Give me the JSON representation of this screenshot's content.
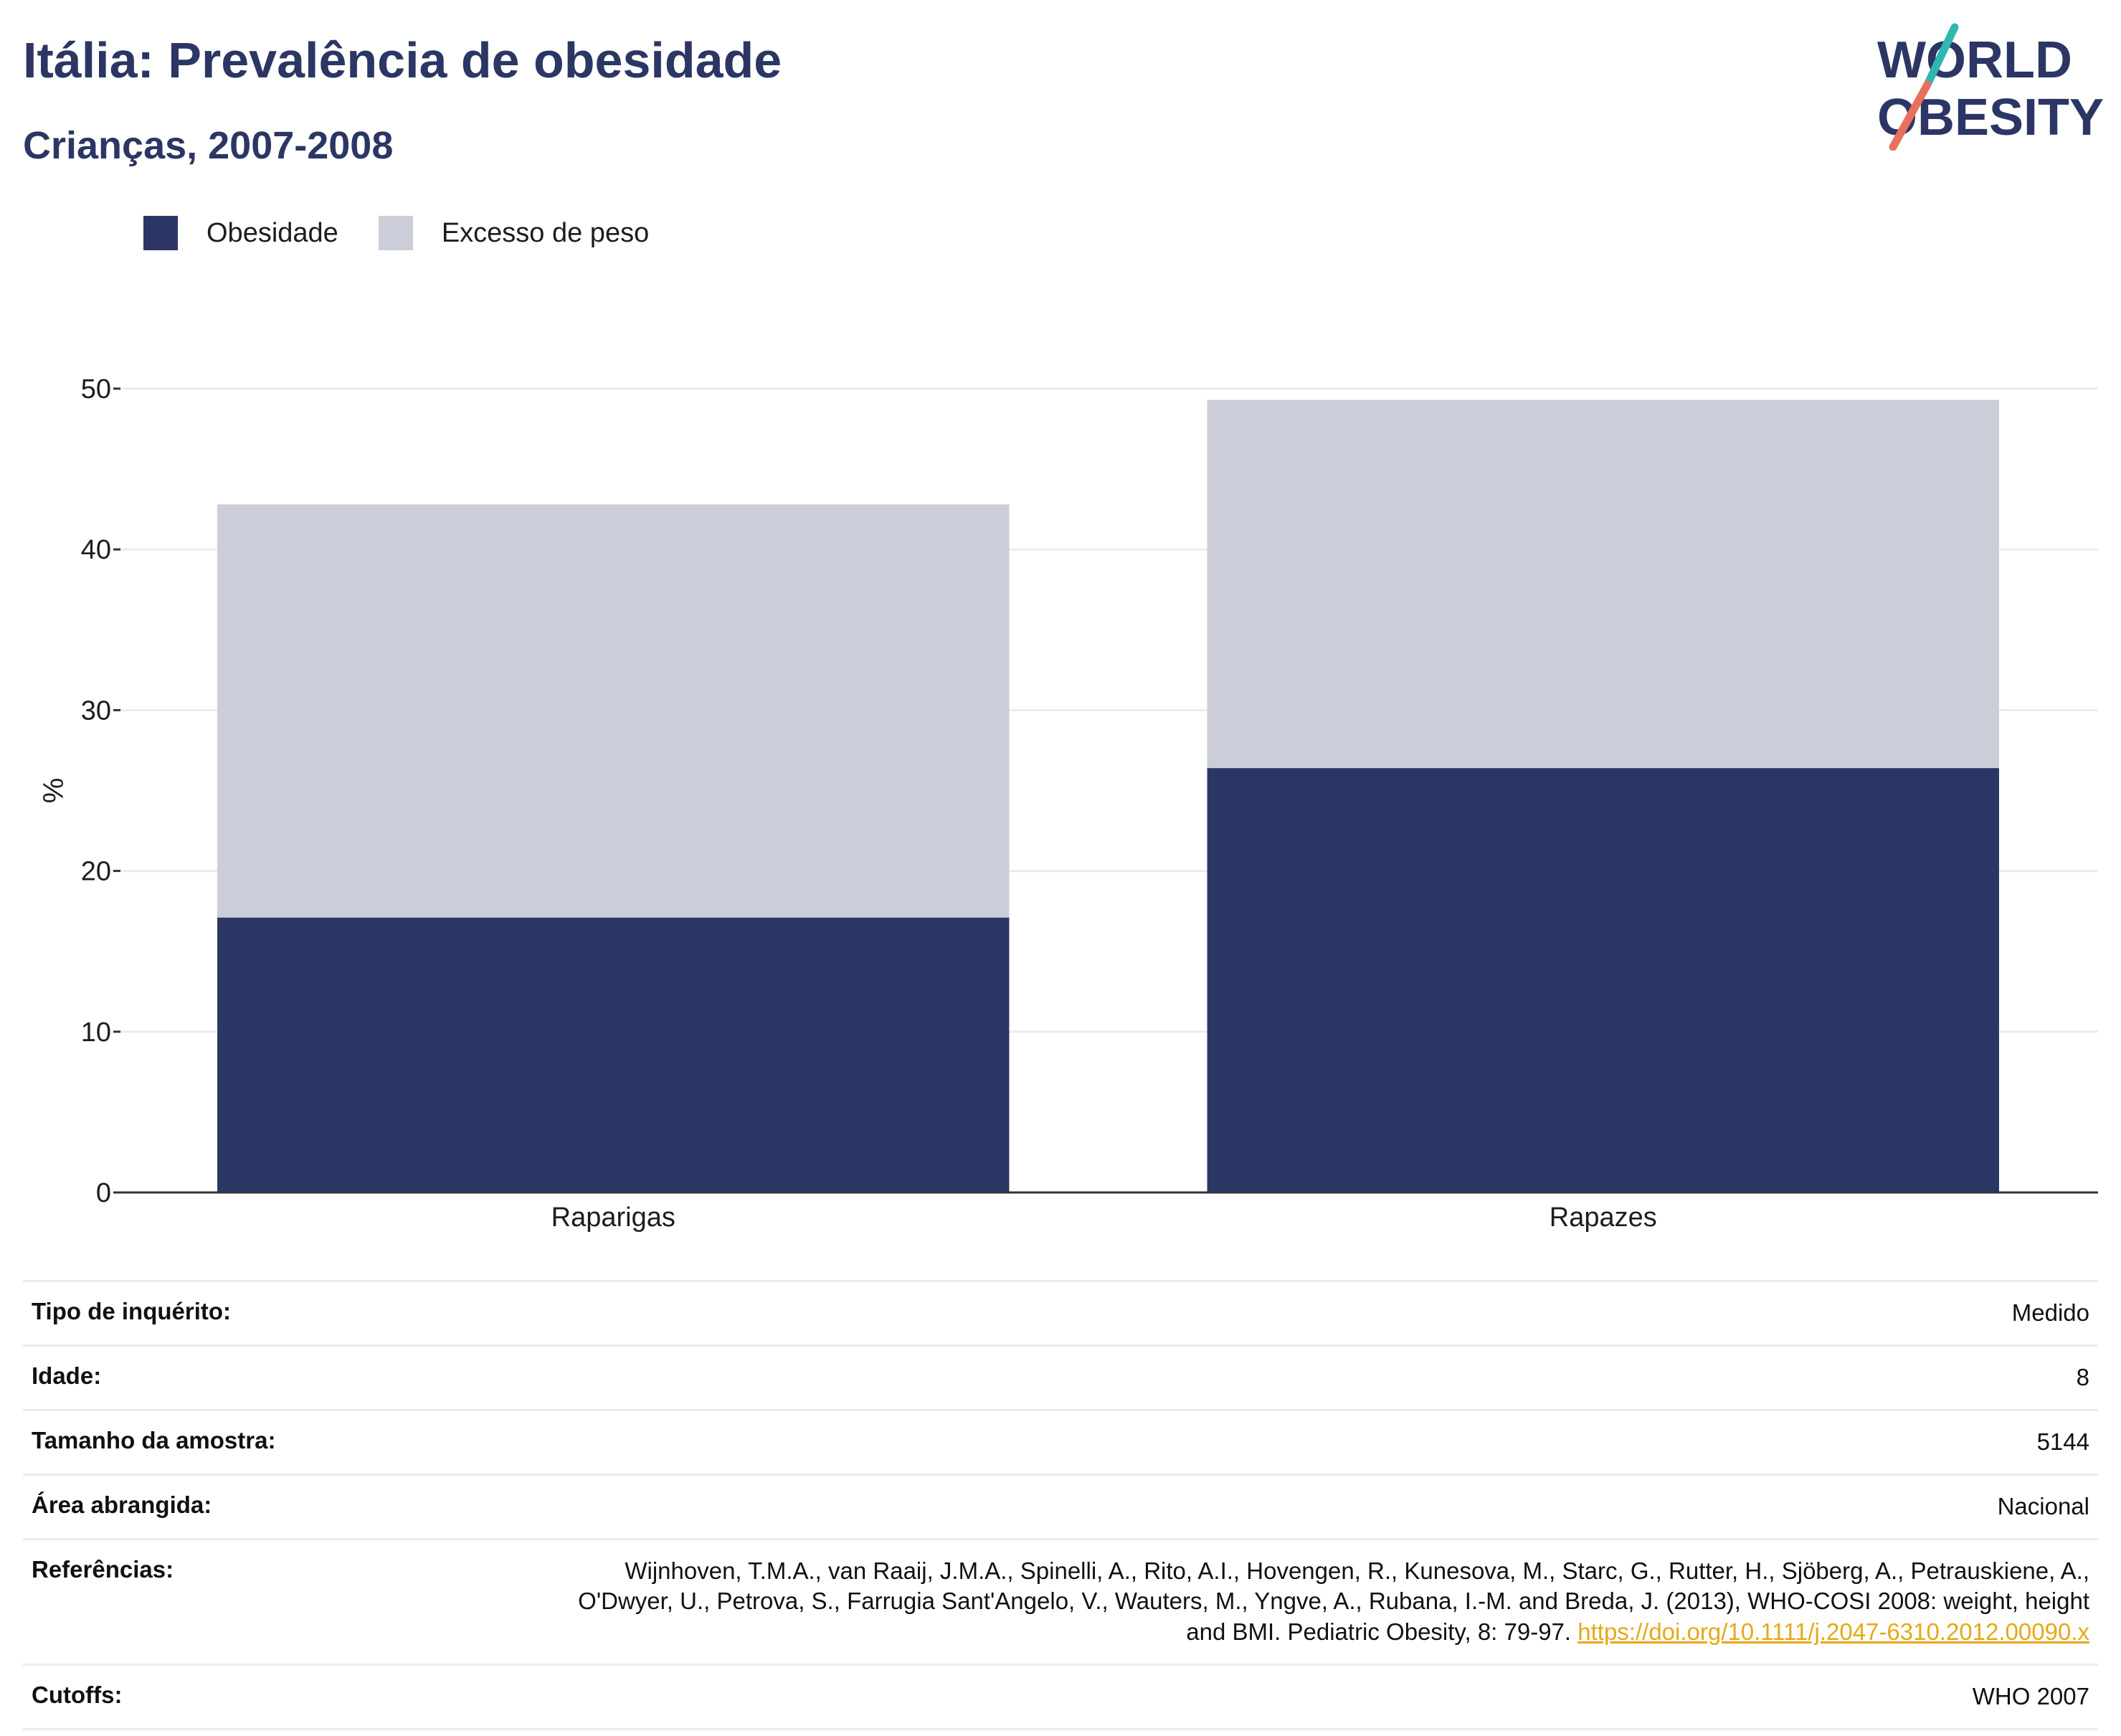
{
  "header": {
    "title": "Itália: Prevalência de obesidade",
    "subtitle": "Crianças, 2007-2008"
  },
  "logo": {
    "line1": "WORLD",
    "line2": "OBESITY"
  },
  "colors": {
    "obesity": "#2b3664",
    "overweight": "#cbcdd9",
    "grid": "#ececf0",
    "axis": "#333333",
    "link": "#e6a817",
    "logo_text": "#2b3664",
    "logo_teal": "#2fb8b0",
    "logo_coral": "#e8705d"
  },
  "chart_data": {
    "type": "bar",
    "stacked": true,
    "categories": [
      "Raparigas",
      "Rapazes"
    ],
    "series": [
      {
        "name": "Obesidade",
        "values": [
          17.1,
          26.4
        ]
      },
      {
        "name": "Excesso de peso",
        "values": [
          25.7,
          22.9
        ]
      }
    ],
    "ylabel": "%",
    "ylim": [
      0,
      50
    ],
    "yticks": [
      0,
      10,
      20,
      30,
      40,
      50
    ],
    "grid": true,
    "legend_position": "top-left"
  },
  "info": [
    {
      "key": "Tipo de inquérito:",
      "value": "Medido"
    },
    {
      "key": "Idade:",
      "value": "8"
    },
    {
      "key": "Tamanho da amostra:",
      "value": "5144"
    },
    {
      "key": "Área abrangida:",
      "value": "Nacional"
    },
    {
      "key": "Referências:",
      "value": "Wijnhoven, T.M.A., van Raaij, J.M.A., Spinelli, A., Rito, A.I., Hovengen, R., Kunesova, M., Starc, G., Rutter, H., Sjöberg, A., Petrauskiene, A., O'Dwyer, U., Petrova, S., Farrugia Sant'Angelo, V., Wauters, M., Yngve, A., Rubana, I.-M. and Breda, J. (2013), WHO-COSI 2008: weight, height and BMI. Pediatric Obesity, 8: 79-97.",
      "link": "https://doi.org/10.1111/j.2047-6310.2012.00090.x"
    },
    {
      "key": "Cutoffs:",
      "value": "WHO 2007"
    }
  ]
}
